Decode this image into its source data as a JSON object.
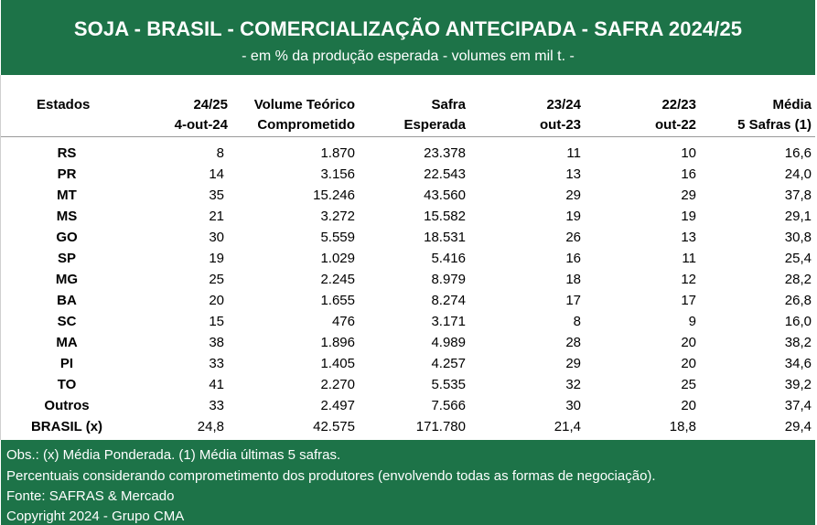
{
  "header": {
    "title": "SOJA - BRASIL - COMERCIALIZAÇÃO ANTECIPADA - SAFRA 2024/25",
    "subtitle": "- em % da produção esperada - volumes em mil t. -"
  },
  "columns": [
    {
      "line1": "Estados",
      "line2": ""
    },
    {
      "line1": "24/25",
      "line2": "4-out-24"
    },
    {
      "line1": "Volume Teórico",
      "line2": "Comprometido"
    },
    {
      "line1": "Safra",
      "line2": "Esperada"
    },
    {
      "line1": "23/24",
      "line2": "out-23"
    },
    {
      "line1": "22/23",
      "line2": "out-22"
    },
    {
      "line1": "Média",
      "line2": "5 Safras (1)"
    }
  ],
  "rows": [
    [
      "RS",
      "8",
      "1.870",
      "23.378",
      "11",
      "10",
      "16,6"
    ],
    [
      "PR",
      "14",
      "3.156",
      "22.543",
      "13",
      "16",
      "24,0"
    ],
    [
      "MT",
      "35",
      "15.246",
      "43.560",
      "29",
      "29",
      "37,8"
    ],
    [
      "MS",
      "21",
      "3.272",
      "15.582",
      "19",
      "19",
      "29,1"
    ],
    [
      "GO",
      "30",
      "5.559",
      "18.531",
      "26",
      "13",
      "30,8"
    ],
    [
      "SP",
      "19",
      "1.029",
      "5.416",
      "16",
      "11",
      "25,4"
    ],
    [
      "MG",
      "25",
      "2.245",
      "8.979",
      "18",
      "12",
      "28,2"
    ],
    [
      "BA",
      "20",
      "1.655",
      "8.274",
      "17",
      "17",
      "26,8"
    ],
    [
      "SC",
      "15",
      "476",
      "3.171",
      "8",
      "9",
      "16,0"
    ],
    [
      "MA",
      "38",
      "1.896",
      "4.989",
      "28",
      "20",
      "38,2"
    ],
    [
      "PI",
      "33",
      "1.405",
      "4.257",
      "29",
      "20",
      "34,6"
    ],
    [
      "TO",
      "41",
      "2.270",
      "5.535",
      "32",
      "25",
      "39,2"
    ],
    [
      "Outros",
      "33",
      "2.497",
      "7.566",
      "30",
      "20",
      "37,4"
    ],
    [
      "BRASIL (x)",
      "24,8",
      "42.575",
      "171.780",
      "21,4",
      "18,8",
      "29,4"
    ]
  ],
  "footer": {
    "line1": "Obs.: (x) Média Ponderada.  (1) Média últimas 5 safras.",
    "line2": "Percentuais considerando comprometimento dos produtores (envolvendo todas as formas de negociação).",
    "line3": "Fonte: SAFRAS & Mercado",
    "line4": "Copyright 2024 - Grupo CMA"
  }
}
